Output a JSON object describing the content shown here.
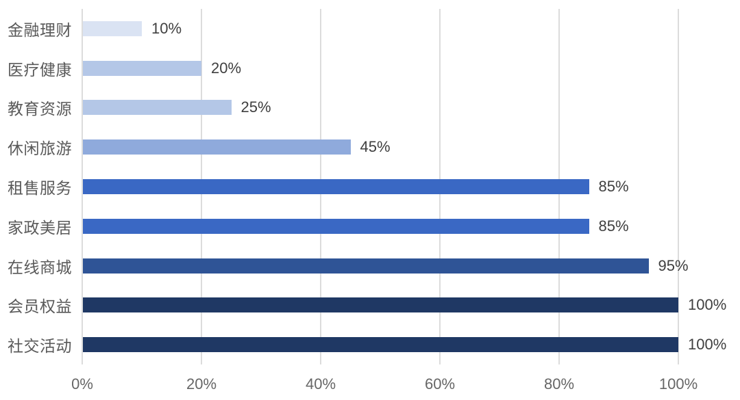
{
  "chart_data": {
    "type": "bar",
    "orientation": "horizontal",
    "title": "",
    "xlabel": "",
    "ylabel": "",
    "xlim": [
      0,
      100
    ],
    "grid": "vertical",
    "legend": "none",
    "categories": [
      "金融理财",
      "医疗健康",
      "教育资源",
      "休闲旅游",
      "租售服务",
      "家政美居",
      "在线商城",
      "会员权益",
      "社交活动"
    ],
    "values": [
      10,
      20,
      25,
      45,
      85,
      85,
      95,
      100,
      100
    ],
    "value_labels": [
      "10%",
      "20%",
      "25%",
      "45%",
      "85%",
      "85%",
      "95%",
      "100%",
      "100%"
    ],
    "bar_colors": [
      "#dae3f3",
      "#b4c7e7",
      "#b4c7e7",
      "#8faadc",
      "#3a68c4",
      "#3a68c4",
      "#2f5496",
      "#1f3864",
      "#1f3864"
    ],
    "x_ticks": [
      "0%",
      "20%",
      "40%",
      "60%",
      "80%",
      "100%"
    ],
    "x_tick_values": [
      0,
      20,
      40,
      60,
      80,
      100
    ],
    "colors": {
      "background": "#ffffff",
      "gridline": "#dcdcdc",
      "category_label": "#595959",
      "value_label": "#3f3f3f",
      "axis_tick_label": "#666666"
    }
  }
}
